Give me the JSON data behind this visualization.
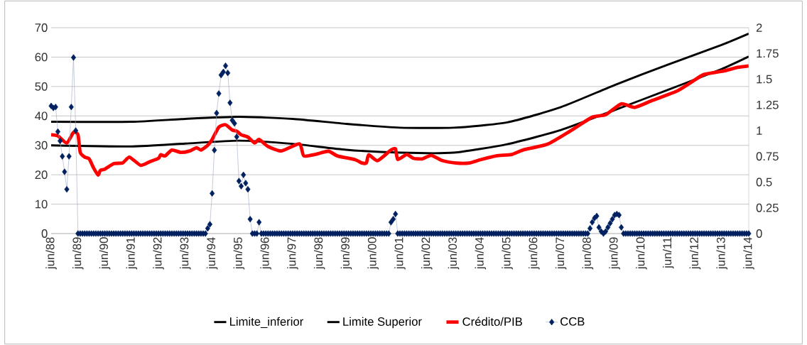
{
  "chart_data": {
    "type": "line",
    "xlim": [
      "1988-06",
      "2014-06"
    ],
    "xticks": [
      {
        "value": "1988-06",
        "label": "jun/88"
      },
      {
        "value": "1989-06",
        "label": "jun/89"
      },
      {
        "value": "1990-06",
        "label": "jun/90"
      },
      {
        "value": "1991-06",
        "label": "jun/91"
      },
      {
        "value": "1992-06",
        "label": "jun/92"
      },
      {
        "value": "1993-06",
        "label": "jun/93"
      },
      {
        "value": "1994-06",
        "label": "jun/94"
      },
      {
        "value": "1995-06",
        "label": "jun/95"
      },
      {
        "value": "1996-06",
        "label": "jun/96"
      },
      {
        "value": "1997-06",
        "label": "jun/97"
      },
      {
        "value": "1998-06",
        "label": "jun/98"
      },
      {
        "value": "1999-06",
        "label": "jun/99"
      },
      {
        "value": "2000-06",
        "label": "jun/00"
      },
      {
        "value": "2001-06",
        "label": "jun/01"
      },
      {
        "value": "2002-06",
        "label": "jun/02"
      },
      {
        "value": "2003-06",
        "label": "jun/03"
      },
      {
        "value": "2004-06",
        "label": "jun/04"
      },
      {
        "value": "2005-06",
        "label": "jun/05"
      },
      {
        "value": "2006-06",
        "label": "jun/06"
      },
      {
        "value": "2007-06",
        "label": "jun/07"
      },
      {
        "value": "2008-06",
        "label": "jun/08"
      },
      {
        "value": "2009-06",
        "label": "jun/09"
      },
      {
        "value": "2010-06",
        "label": "jun/10"
      },
      {
        "value": "2011-06",
        "label": "jun/11"
      },
      {
        "value": "2012-06",
        "label": "jun/12"
      },
      {
        "value": "2013-06",
        "label": "jun/13"
      },
      {
        "value": "2014-06",
        "label": "jun/14"
      }
    ],
    "ylim": [
      0,
      70
    ],
    "yticks": [
      0,
      10,
      20,
      30,
      40,
      50,
      60,
      70
    ],
    "y2lim": [
      0,
      2
    ],
    "y2ticks": [
      0,
      0.25,
      0.5,
      0.75,
      1,
      1.25,
      1.5,
      1.75,
      2
    ],
    "grid": "y",
    "legend": "bottom",
    "series": [
      {
        "name": "Limite_inferior",
        "color": "#000000",
        "x": [
          "1988-06",
          "1991-06",
          "1993-06",
          "1995-06",
          "1997-06",
          "1999-06",
          "2001-06",
          "2003-06",
          "2005-06",
          "2007-06",
          "2009-06",
          "2011-06",
          "2013-06",
          "2014-06"
        ],
        "values": [
          30,
          29.6,
          30.6,
          31.6,
          30.5,
          28.5,
          27.5,
          27.5,
          30.4,
          35.2,
          42,
          48.9,
          56,
          60.2
        ]
      },
      {
        "name": "Limite Superior",
        "color": "#000000",
        "x": [
          "1988-06",
          "1991-06",
          "1993-06",
          "1995-06",
          "1997-06",
          "1999-06",
          "2001-06",
          "2003-06",
          "2005-06",
          "2007-06",
          "2009-06",
          "2011-06",
          "2013-06",
          "2014-06"
        ],
        "values": [
          38,
          38,
          39,
          39.7,
          39,
          37.3,
          36,
          36,
          37.8,
          43,
          50.5,
          57.5,
          64.2,
          68
        ]
      },
      {
        "name": "Crédito/PIB",
        "color": "#ff0000",
        "x": [
          "1988-06",
          "1988-09",
          "1989-01",
          "1989-04",
          "1989-06",
          "1989-07",
          "1989-09",
          "1989-11",
          "1990-01",
          "1990-03",
          "1990-04",
          "1990-06",
          "1990-10",
          "1991-02",
          "1991-05",
          "1991-10",
          "1992-02",
          "1992-06",
          "1992-07",
          "1992-09",
          "1992-12",
          "1993-04",
          "1993-08",
          "1993-11",
          "1994-01",
          "1994-04",
          "1994-06",
          "1994-09",
          "1994-12",
          "1995-03",
          "1995-05",
          "1995-07",
          "1995-10",
          "1996-01",
          "1996-03",
          "1996-07",
          "1997-01",
          "1997-09",
          "1997-11",
          "1998-04",
          "1998-10",
          "1999-02",
          "1999-10",
          "2000-01",
          "2000-03",
          "2000-04",
          "2000-08",
          "2001-02",
          "2001-04",
          "2001-05",
          "2001-09",
          "2001-12",
          "2002-04",
          "2002-08",
          "2003-01",
          "2003-07",
          "2004-01",
          "2004-06",
          "2005-01",
          "2005-08",
          "2006-01",
          "2006-12",
          "2007-10",
          "2008-08",
          "2009-02",
          "2009-09",
          "2010-03",
          "2010-11",
          "2011-10",
          "2012-04",
          "2012-10",
          "2013-07",
          "2014-01",
          "2014-06"
        ],
        "values": [
          33.6,
          33.2,
          30.8,
          34.4,
          33.6,
          27.6,
          26,
          25.4,
          22.3,
          19.9,
          21.5,
          21.9,
          23.8,
          24,
          26,
          23.2,
          24.4,
          25.6,
          26.8,
          26.4,
          28.4,
          27.6,
          28.1,
          29.2,
          28.4,
          30,
          32,
          36.2,
          37,
          35.2,
          34.8,
          33.6,
          32.8,
          30.8,
          32,
          29.6,
          28.1,
          30.5,
          26.4,
          26.9,
          28,
          26.4,
          25.1,
          24,
          24,
          26.8,
          24.8,
          28.4,
          28.8,
          25.2,
          26.9,
          25.6,
          25.4,
          26.6,
          24.8,
          24,
          24,
          25.1,
          26.4,
          26.9,
          28.4,
          30.4,
          34.8,
          39.6,
          40.4,
          44.1,
          42.9,
          45.3,
          48.5,
          51.3,
          54.1,
          55.3,
          56.5,
          57
        ]
      },
      {
        "name": "CCB",
        "color": "#002060",
        "axis": "y2",
        "marker": "diamond",
        "x": [
          "1988-06",
          "1988-07",
          "1988-08",
          "1988-09",
          "1988-10",
          "1988-11",
          "1988-12",
          "1989-01",
          "1989-02",
          "1989-03",
          "1989-04",
          "1989-05",
          "1989-06",
          "1989-07",
          "1989-08",
          "1989-09",
          "1989-10",
          "1989-11",
          "1989-12",
          "1990-01",
          "1990-02",
          "1990-03",
          "1990-04",
          "1990-05",
          "1990-06",
          "1990-07",
          "1990-08",
          "1990-09",
          "1990-10",
          "1990-11",
          "1990-12",
          "1991-01",
          "1991-02",
          "1991-03",
          "1991-04",
          "1991-05",
          "1991-06",
          "1991-07",
          "1991-08",
          "1991-09",
          "1991-10",
          "1991-11",
          "1991-12",
          "1992-01",
          "1992-02",
          "1992-03",
          "1992-04",
          "1992-05",
          "1992-06",
          "1992-07",
          "1992-08",
          "1992-09",
          "1992-10",
          "1992-11",
          "1992-12",
          "1993-01",
          "1993-02",
          "1993-03",
          "1993-04",
          "1993-05",
          "1993-06",
          "1993-07",
          "1993-08",
          "1993-09",
          "1993-10",
          "1993-11",
          "1993-12",
          "1994-01",
          "1994-02",
          "1994-03",
          "1994-04",
          "1994-05",
          "1994-06",
          "1994-07",
          "1994-08",
          "1994-09",
          "1994-10",
          "1994-11",
          "1994-12",
          "1995-01",
          "1995-02",
          "1995-03",
          "1995-04",
          "1995-05",
          "1995-06",
          "1995-07",
          "1995-08",
          "1995-09",
          "1995-10",
          "1995-11",
          "1995-12",
          "1996-01",
          "1996-02",
          "1996-03",
          "1996-04",
          "1996-05",
          "1996-06",
          "1996-07",
          "1996-08",
          "1996-09",
          "1996-10",
          "1996-11",
          "1996-12",
          "1997-01",
          "1997-02",
          "1997-03",
          "1997-04",
          "1997-05",
          "1997-06",
          "1997-07",
          "1997-08",
          "1997-09",
          "1997-10",
          "1997-11",
          "1997-12",
          "1998-01",
          "1998-02",
          "1998-03",
          "1998-04",
          "1998-05",
          "1998-06",
          "1998-07",
          "1998-08",
          "1998-09",
          "1998-10",
          "1998-11",
          "1998-12",
          "1999-01",
          "1999-02",
          "1999-03",
          "1999-04",
          "1999-05",
          "1999-06",
          "1999-07",
          "1999-08",
          "1999-09",
          "1999-10",
          "1999-11",
          "1999-12",
          "2000-01",
          "2000-02",
          "2000-03",
          "2000-04",
          "2000-05",
          "2000-06",
          "2000-07",
          "2000-08",
          "2000-09",
          "2000-10",
          "2000-11",
          "2000-12",
          "2001-01",
          "2001-02",
          "2001-03",
          "2001-04",
          "2001-05",
          "2001-06",
          "2001-07",
          "2001-08",
          "2001-09",
          "2001-10",
          "2001-11",
          "2001-12",
          "2002-01",
          "2002-02",
          "2002-03",
          "2002-04",
          "2002-05",
          "2002-06",
          "2002-07",
          "2002-08",
          "2002-09",
          "2002-10",
          "2002-11",
          "2002-12",
          "2003-01",
          "2003-02",
          "2003-03",
          "2003-04",
          "2003-05",
          "2003-06",
          "2003-07",
          "2003-08",
          "2003-09",
          "2003-10",
          "2003-11",
          "2003-12",
          "2004-01",
          "2004-02",
          "2004-03",
          "2004-04",
          "2004-05",
          "2004-06",
          "2004-07",
          "2004-08",
          "2004-09",
          "2004-10",
          "2004-11",
          "2004-12",
          "2005-01",
          "2005-02",
          "2005-03",
          "2005-04",
          "2005-05",
          "2005-06",
          "2005-07",
          "2005-08",
          "2005-09",
          "2005-10",
          "2005-11",
          "2005-12",
          "2006-01",
          "2006-02",
          "2006-03",
          "2006-04",
          "2006-05",
          "2006-06",
          "2006-07",
          "2006-08",
          "2006-09",
          "2006-10",
          "2006-11",
          "2006-12",
          "2007-01",
          "2007-02",
          "2007-03",
          "2007-04",
          "2007-05",
          "2007-06",
          "2007-07",
          "2007-08",
          "2007-09",
          "2007-10",
          "2007-11",
          "2007-12",
          "2008-01",
          "2008-02",
          "2008-03",
          "2008-04",
          "2008-05",
          "2008-06",
          "2008-07",
          "2008-08",
          "2008-09",
          "2008-10",
          "2008-11",
          "2008-12",
          "2009-01",
          "2009-02",
          "2009-03",
          "2009-04",
          "2009-05",
          "2009-06",
          "2009-07",
          "2009-08",
          "2009-09",
          "2009-10",
          "2009-11",
          "2009-12",
          "2010-01",
          "2010-02",
          "2010-03",
          "2010-04",
          "2010-05",
          "2010-06",
          "2010-07",
          "2010-08",
          "2010-09",
          "2010-10",
          "2010-11",
          "2010-12",
          "2011-01",
          "2011-02",
          "2011-03",
          "2011-04",
          "2011-05",
          "2011-06",
          "2011-07",
          "2011-08",
          "2011-09",
          "2011-10",
          "2011-11",
          "2011-12",
          "2012-01",
          "2012-02",
          "2012-03",
          "2012-04",
          "2012-05",
          "2012-06",
          "2012-07",
          "2012-08",
          "2012-09",
          "2012-10",
          "2012-11",
          "2012-12",
          "2013-01",
          "2013-02",
          "2013-03",
          "2013-04",
          "2013-05",
          "2013-06",
          "2013-07",
          "2013-08",
          "2013-09",
          "2013-10",
          "2013-11",
          "2013-12",
          "2014-01",
          "2014-02",
          "2014-03",
          "2014-04",
          "2014-05",
          "2014-06"
        ],
        "values": [
          1.24,
          1.22,
          1.23,
          0.99,
          0.9,
          0.75,
          0.6,
          0.43,
          0.75,
          1.23,
          1.71,
          1.0,
          0,
          0,
          0,
          0,
          0,
          0,
          0,
          0,
          0,
          0,
          0,
          0,
          0,
          0,
          0,
          0,
          0,
          0,
          0,
          0,
          0,
          0,
          0,
          0,
          0,
          0,
          0,
          0,
          0,
          0,
          0,
          0,
          0,
          0,
          0,
          0,
          0,
          0,
          0,
          0,
          0,
          0,
          0,
          0,
          0,
          0,
          0,
          0,
          0,
          0,
          0,
          0,
          0,
          0,
          0,
          0,
          0,
          0,
          0.05,
          0.09,
          0.39,
          0.81,
          1.17,
          1.36,
          1.54,
          1.57,
          1.63,
          1.56,
          1.27,
          1.1,
          1.07,
          0.94,
          0.51,
          0.46,
          0.57,
          0.49,
          0.43,
          0.14,
          0,
          0,
          0,
          0.11,
          0,
          0,
          0,
          0,
          0,
          0,
          0,
          0,
          0,
          0,
          0,
          0,
          0,
          0,
          0,
          0,
          0,
          0,
          0,
          0,
          0,
          0,
          0,
          0,
          0,
          0,
          0,
          0,
          0,
          0,
          0,
          0,
          0,
          0,
          0,
          0,
          0,
          0,
          0,
          0,
          0,
          0,
          0,
          0,
          0,
          0,
          0,
          0,
          0,
          0,
          0,
          0,
          0,
          0,
          0,
          0,
          0,
          0,
          0.11,
          0.14,
          0.19,
          0,
          0,
          0,
          0,
          0,
          0,
          0,
          0,
          0,
          0,
          0,
          0,
          0,
          0,
          0,
          0,
          0,
          0,
          0,
          0,
          0,
          0,
          0,
          0,
          0,
          0,
          0,
          0,
          0,
          0,
          0,
          0,
          0,
          0,
          0,
          0,
          0,
          0,
          0,
          0,
          0,
          0,
          0,
          0,
          0,
          0,
          0,
          0,
          0,
          0,
          0,
          0,
          0,
          0,
          0,
          0,
          0,
          0,
          0,
          0,
          0,
          0,
          0,
          0,
          0,
          0,
          0,
          0,
          0,
          0,
          0,
          0,
          0,
          0,
          0,
          0,
          0,
          0,
          0,
          0,
          0,
          0,
          0,
          0,
          0,
          0,
          0.05,
          0.11,
          0.15,
          0.17,
          0.06,
          0.02,
          0,
          0.02,
          0.06,
          0.1,
          0.14,
          0.18,
          0.19,
          0.18,
          0.06,
          0,
          0,
          0,
          0,
          0,
          0,
          0,
          0,
          0,
          0,
          0,
          0,
          0,
          0,
          0,
          0,
          0,
          0,
          0,
          0,
          0,
          0,
          0,
          0,
          0,
          0,
          0,
          0,
          0,
          0,
          0,
          0,
          0,
          0,
          0,
          0,
          0,
          0,
          0,
          0,
          0,
          0,
          0,
          0,
          0,
          0,
          0,
          0,
          0,
          0,
          0,
          0,
          0,
          0,
          0,
          0,
          0
        ]
      }
    ]
  }
}
